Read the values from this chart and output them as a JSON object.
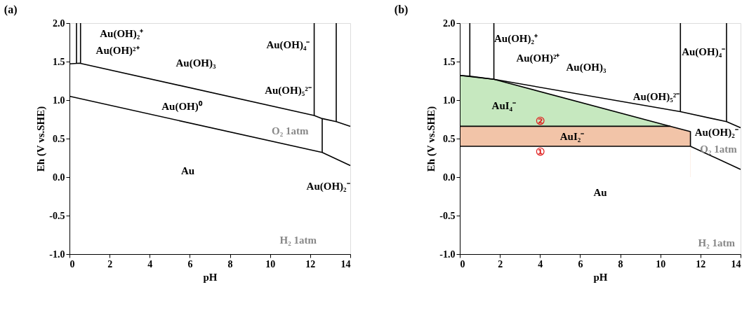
{
  "chart_data": [
    {
      "type": "line",
      "title": "(a)",
      "xlabel": "pH",
      "ylabel": "Eh (V vs.SHE)",
      "xlim": [
        0,
        14
      ],
      "ylim": [
        -1.0,
        2.0
      ],
      "xticks": [
        0,
        2,
        4,
        6,
        8,
        10,
        12,
        14
      ],
      "yticks": [
        {
          "value": -1,
          "label": "-1.0"
        },
        {
          "value": -0.5,
          "label": "-0.5"
        },
        {
          "value": 0,
          "label": "0.0"
        },
        {
          "value": 0.5,
          "label": "0.5"
        },
        {
          "value": 1,
          "label": "1.0"
        },
        {
          "value": 1.5,
          "label": "1.5"
        },
        {
          "value": 2,
          "label": "2.0"
        }
      ],
      "grid": false,
      "series": [
        {
          "color": "#000000",
          "x": [
            0,
            0.5,
            12.2,
            12.6,
            13.3,
            14
          ],
          "values": [
            1.47,
            1.48,
            0.8,
            0.76,
            0.72,
            0.66
          ]
        },
        {
          "color": "#000000",
          "x": [
            0,
            12.6,
            14
          ],
          "values": [
            1.05,
            0.32,
            0.15
          ]
        },
        {
          "color": "#000000",
          "x": [
            0.35,
            0.35
          ],
          "values": [
            1.48,
            2.0
          ]
        },
        {
          "color": "#000000",
          "x": [
            0.55,
            0.55
          ],
          "values": [
            1.48,
            2.0
          ]
        },
        {
          "color": "#000000",
          "x": [
            12.2,
            12.2
          ],
          "values": [
            0.8,
            2.0
          ]
        },
        {
          "color": "#000000",
          "x": [
            13.3,
            13.3
          ],
          "values": [
            0.72,
            2.0
          ]
        },
        {
          "color": "#000000",
          "x": [
            12.6,
            12.6
          ],
          "values": [
            0.32,
            0.76
          ]
        }
      ],
      "annotations": [
        "Au(OH)₂⁺",
        "Au(OH)²⁺",
        "Au(OH)₃",
        "Au(OH)₄⁻",
        "Au(OH)₅²⁻",
        "Au(OH)⁰",
        "O₂ 1atm",
        "Au",
        "Au(OH)₂⁻",
        "H₂ 1atm"
      ]
    },
    {
      "type": "line",
      "title": "(b)",
      "xlabel": "pH",
      "ylabel": "Eh (V vs.SHE)",
      "xlim": [
        0,
        14
      ],
      "ylim": [
        -1.0,
        2.0
      ],
      "xticks": [
        0,
        2,
        4,
        6,
        8,
        10,
        12,
        14
      ],
      "yticks": [
        {
          "value": -1,
          "label": "-1.0"
        },
        {
          "value": -0.5,
          "label": "-0.5"
        },
        {
          "value": 0,
          "label": "0.0"
        },
        {
          "value": 0.5,
          "label": "0.5"
        },
        {
          "value": 1,
          "label": "1.0"
        },
        {
          "value": 1.5,
          "label": "1.5"
        },
        {
          "value": 2,
          "label": "2.0"
        }
      ],
      "grid": false,
      "series": [
        {
          "type": "area",
          "color": "#c6e8bf",
          "x": [
            0,
            1.7,
            10.5
          ],
          "values": [
            1.32,
            1.27,
            0.66
          ]
        },
        {
          "type": "area",
          "color": "#f2c4a8",
          "x": [
            0,
            10.5,
            11.5,
            11.5
          ],
          "values": [
            0.66,
            0.66,
            0.59,
            0.4
          ]
        },
        {
          "type": "area",
          "color": "#ffffff",
          "x": [
            0,
            11.5
          ],
          "values": [
            0.4,
            0.4
          ]
        },
        {
          "color": "#000000",
          "x": [
            0,
            0.5,
            1.7,
            11.0,
            13.3,
            14
          ],
          "values": [
            1.32,
            1.31,
            1.27,
            0.85,
            0.72,
            0.64
          ]
        },
        {
          "color": "#000000",
          "x": [
            11.5,
            14
          ],
          "values": [
            0.4,
            0.1
          ]
        },
        {
          "color": "#000000",
          "x": [
            0.5,
            0.5
          ],
          "values": [
            1.31,
            2.0
          ]
        },
        {
          "color": "#000000",
          "x": [
            1.7,
            1.7
          ],
          "values": [
            1.27,
            2.0
          ]
        },
        {
          "color": "#000000",
          "x": [
            11.0,
            11.0
          ],
          "values": [
            0.85,
            2.0
          ]
        },
        {
          "color": "#000000",
          "x": [
            13.3,
            13.3
          ],
          "values": [
            0.72,
            2.0
          ]
        }
      ],
      "annotations": [
        "Au(OH)₂⁺",
        "Au(OH)²⁺",
        "Au(OH)₃",
        "Au(OH)₄⁻",
        "Au(OH)₅²⁻",
        "AuI₄⁻",
        "②",
        "AuI₂⁻",
        "①",
        "Au(OH)₂⁻",
        "O₂ 1atm",
        "Au",
        "H₂ 1atm"
      ]
    }
  ]
}
